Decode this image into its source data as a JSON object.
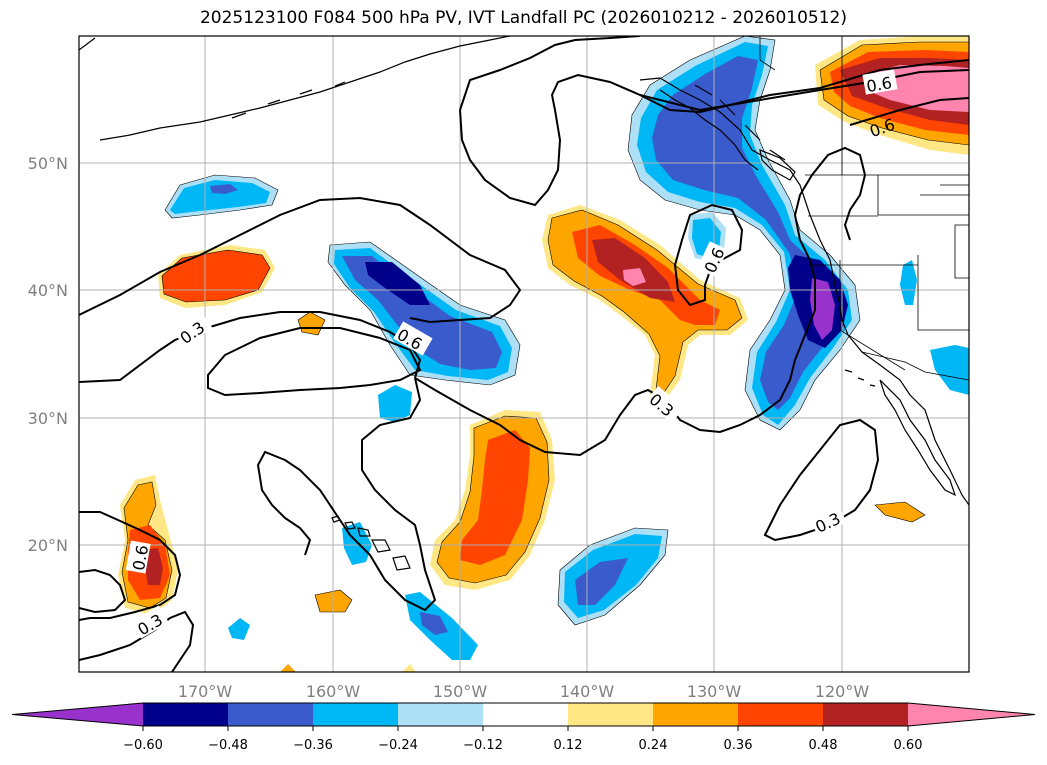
{
  "title": "2025123100 F084 500 hPa PV, IVT Landfall PC (2026010212 - 2026010512)",
  "map": {
    "lat_labels": [
      "50°N",
      "40°N",
      "30°N",
      "20°N"
    ],
    "lon_labels": [
      "170°W",
      "160°W",
      "150°W",
      "140°W",
      "130°W",
      "120°W"
    ],
    "contour_labels": [
      "0.3",
      "0.6",
      "0.6",
      "0.3",
      "0.6",
      "0.6",
      "0.3",
      "0.3",
      "0.6"
    ]
  },
  "colorbar": {
    "ticks": [
      "−0.60",
      "−0.48",
      "−0.36",
      "−0.24",
      "−0.12",
      "0.12",
      "0.24",
      "0.36",
      "0.48",
      "0.60"
    ],
    "colors": [
      "#9932CC",
      "#00008B",
      "#3A5BCC",
      "#00B7F5",
      "#ADE0F7",
      "#FFFFFF",
      "#FFE785",
      "#FFA500",
      "#FF4500",
      "#B22222",
      "#FF85AE"
    ]
  },
  "colors": {
    "c_m060": "#9932CC",
    "c_m048": "#00008B",
    "c_m036": "#3A5BCC",
    "c_m024": "#00B7F5",
    "c_m012": "#ADE0F7",
    "c_p012": "#FFE785",
    "c_p024": "#FFA500",
    "c_p036": "#FF4500",
    "c_p048": "#B22222",
    "c_p060": "#FF85AE"
  }
}
